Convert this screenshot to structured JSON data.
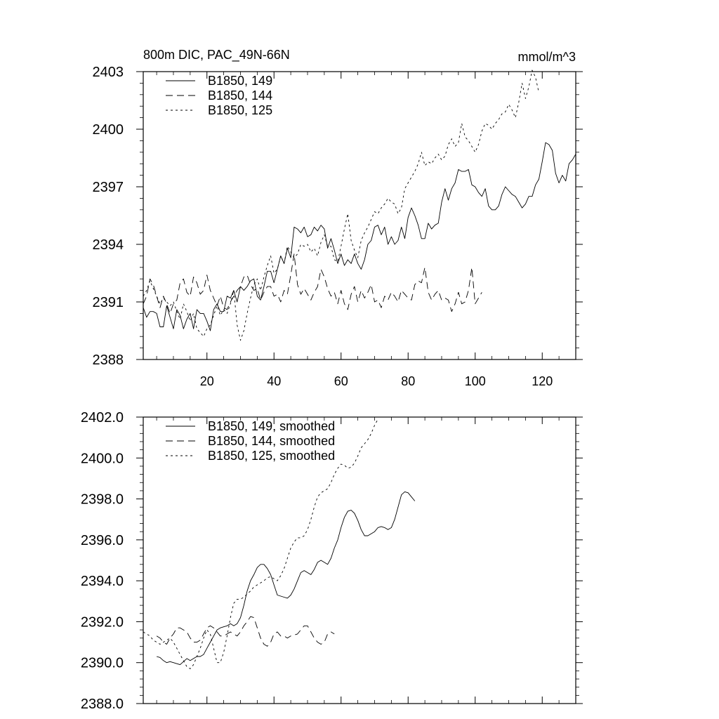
{
  "chart_data": [
    {
      "type": "line",
      "title": "800m DIC, PAC_49N-66N",
      "units": "mmol/m^3",
      "xlim": [
        1,
        130
      ],
      "ylim": [
        2388,
        2403
      ],
      "xticks": [
        20,
        40,
        60,
        80,
        100,
        120
      ],
      "xtick_labels": [
        "20",
        "40",
        "60",
        "80",
        "100",
        "120"
      ],
      "yticks": [
        2388,
        2391,
        2394,
        2397,
        2400,
        2403
      ],
      "ytick_labels": [
        "2388",
        "2391",
        "2394",
        "2397",
        "2400",
        "2403"
      ],
      "legend": "top-left",
      "series": [
        {
          "name": "B1850, 149",
          "style": "solid",
          "x_start": 1,
          "values": [
            2390.7,
            2390.2,
            2390.5,
            2390.5,
            2390.4,
            2389.7,
            2389.7,
            2390.8,
            2390.2,
            2389.6,
            2390.6,
            2390.3,
            2389.6,
            2390.1,
            2390.4,
            2389.6,
            2390.6,
            2390.4,
            2390.4,
            2390.0,
            2389.5,
            2390.6,
            2390.9,
            2390.5,
            2390.5,
            2391.3,
            2391.2,
            2391.6,
            2391.0,
            2391.8,
            2391.6,
            2391.8,
            2392.1,
            2392.2,
            2391.3,
            2391.1,
            2391.8,
            2392.6,
            2392.6,
            2392.0,
            2392.7,
            2393.4,
            2393.0,
            2393.8,
            2393.3,
            2394.9,
            2394.8,
            2394.6,
            2394.9,
            2394.4,
            2394.5,
            2394.9,
            2394.7,
            2395.0,
            2394.8,
            2393.8,
            2394.3,
            2393.7,
            2393.0,
            2393.5,
            2392.9,
            2393.2,
            2393.0,
            2393.5,
            2393.0,
            2392.7,
            2393.2,
            2394.0,
            2394.2,
            2394.9,
            2395.0,
            2394.5,
            2394.9,
            2394.0,
            2394.4,
            2394.0,
            2394.2,
            2394.9,
            2394.3,
            2395.4,
            2395.9,
            2395.5,
            2395.0,
            2394.3,
            2394.3,
            2395.1,
            2394.8,
            2395.0,
            2395.1,
            2396.2,
            2396.9,
            2396.3,
            2396.9,
            2397.2,
            2397.9,
            2397.8,
            2397.8,
            2397.9,
            2397.1,
            2397.0,
            2396.7,
            2396.5,
            2396.9,
            2396.0,
            2395.8,
            2395.8,
            2396.0,
            2396.6,
            2397.0,
            2396.8,
            2396.6,
            2396.5,
            2396.2,
            2395.9,
            2396.1,
            2396.5,
            2396.5,
            2397.1,
            2397.4,
            2398.3,
            2399.3,
            2399.2,
            2398.9,
            2397.7,
            2397.2,
            2397.6,
            2397.3,
            2398.2,
            2398.4,
            2398.7
          ]
        },
        {
          "name": "B1850, 144",
          "style": "dashed",
          "x_start": 1,
          "values": [
            2390.9,
            2391.3,
            2392.2,
            2391.9,
            2391.3,
            2390.7,
            2391.3,
            2390.9,
            2390.4,
            2390.9,
            2391.1,
            2392.0,
            2392.2,
            2391.5,
            2391.3,
            2392.3,
            2392.0,
            2391.4,
            2391.6,
            2392.4,
            2391.6,
            2391.2,
            2390.8,
            2391.3,
            2390.7,
            2390.6,
            2391.0,
            2391.3,
            2391.6,
            2391.8,
            2392.3,
            2392.4,
            2391.9,
            2391.6,
            2391.7,
            2391.1,
            2391.5,
            2391.8,
            2391.8,
            2391.3,
            2391.4,
            2391.0,
            2391.6,
            2391.4,
            2392.4,
            2393.5,
            2391.9,
            2391.4,
            2391.7,
            2391.4,
            2391.1,
            2391.5,
            2391.8,
            2392.7,
            2392.3,
            2391.7,
            2391.3,
            2391.5,
            2390.9,
            2391.6,
            2390.9,
            2390.6,
            2391.4,
            2391.8,
            2391.0,
            2391.6,
            2391.2,
            2391.5,
            2391.9,
            2391.0,
            2391.1,
            2390.7,
            2391.3,
            2391.1,
            2391.5,
            2391.3,
            2391.0,
            2391.6,
            2391.4,
            2391.2,
            2391.1,
            2391.9,
            2392.1,
            2392.0,
            2392.8,
            2391.5,
            2391.1,
            2391.4,
            2391.6,
            2391.1,
            2391.2,
            2391.1,
            2390.5,
            2390.9,
            2391.5,
            2390.9,
            2391.0,
            2391.6,
            2392.8,
            2390.9,
            2391.2,
            2391.5
          ]
        },
        {
          "name": "B1850, 125",
          "style": "dotted",
          "x_start": 1,
          "values": [
            2391.3,
            2391.6,
            2392.1,
            2391.7,
            2391.3,
            2390.9,
            2391.2,
            2391.0,
            2390.8,
            2391.0,
            2390.5,
            2390.1,
            2390.9,
            2390.5,
            2390.0,
            2390.4,
            2389.6,
            2389.4,
            2389.2,
            2389.6,
            2389.8,
            2390.3,
            2390.8,
            2390.3,
            2390.6,
            2390.4,
            2390.9,
            2391.6,
            2389.8,
            2389.0,
            2389.5,
            2390.4,
            2391.2,
            2391.9,
            2392.2,
            2391.6,
            2392.3,
            2392.9,
            2393.4,
            2392.5,
            2392.7,
            2393.4,
            2393.0,
            2393.9,
            2393.6,
            2393.3,
            2393.5,
            2394.0,
            2393.9,
            2394.0,
            2393.6,
            2393.8,
            2393.4,
            2394.1,
            2394.5,
            2393.9,
            2393.9,
            2393.2,
            2393.1,
            2393.9,
            2394.8,
            2395.6,
            2394.2,
            2393.7,
            2393.3,
            2394.2,
            2394.6,
            2394.9,
            2395.3,
            2395.7,
            2395.6,
            2395.9,
            2396.1,
            2396.4,
            2396.2,
            2396.1,
            2395.6,
            2395.9,
            2396.9,
            2397.2,
            2397.5,
            2397.8,
            2398.2,
            2398.8,
            2398.1,
            2398.3,
            2398.2,
            2398.5,
            2398.7,
            2398.4,
            2398.6,
            2399.2,
            2399.5,
            2399.1,
            2399.3,
            2400.3,
            2399.6,
            2399.4,
            2399.1,
            2398.8,
            2399.2,
            2399.9,
            2400.3,
            2400.2,
            2400.0,
            2400.3,
            2400.5,
            2400.8,
            2400.9,
            2401.3,
            2401.0,
            2400.6,
            2401.4,
            2402.4,
            2401.6,
            2402.2,
            2403.3,
            2402.7,
            2401.9
          ]
        }
      ]
    },
    {
      "type": "line",
      "title": "",
      "xlim": [
        1,
        130
      ],
      "ylim": [
        2388.0,
        2402.0
      ],
      "xticks": [
        20,
        40,
        60,
        80,
        100,
        120
      ],
      "yticks": [
        2388.0,
        2390.0,
        2392.0,
        2394.0,
        2396.0,
        2398.0,
        2400.0,
        2402.0
      ],
      "ytick_labels": [
        "2388.0",
        "2390.0",
        "2392.0",
        "2394.0",
        "2396.0",
        "2398.0",
        "2400.0",
        "2402.0"
      ],
      "legend": "top-left",
      "series": [
        {
          "name": "B1850, 149, smoothed",
          "style": "solid",
          "x_start": 5,
          "values": [
            2390.3,
            2390.25,
            2390.1,
            2390.0,
            2390.05,
            2390.0,
            2389.95,
            2389.9,
            2390.05,
            2390.2,
            2390.1,
            2390.2,
            2390.3,
            2390.3,
            2390.4,
            2390.7,
            2391.0,
            2391.3,
            2391.6,
            2391.7,
            2391.75,
            2391.8,
            2391.9,
            2391.8,
            2391.9,
            2392.2,
            2392.8,
            2393.5,
            2394.0,
            2394.3,
            2394.65,
            2394.8,
            2394.8,
            2394.6,
            2394.3,
            2393.8,
            2393.3,
            2393.25,
            2393.2,
            2393.15,
            2393.3,
            2393.6,
            2394.0,
            2394.4,
            2394.5,
            2394.4,
            2394.3,
            2394.55,
            2394.9,
            2395.0,
            2394.9,
            2394.8,
            2395.1,
            2395.6,
            2396.0,
            2396.6,
            2397.1,
            2397.4,
            2397.45,
            2397.3,
            2396.95,
            2396.5,
            2396.2,
            2396.2,
            2396.3,
            2396.4,
            2396.6,
            2396.65,
            2396.6,
            2396.5,
            2396.6,
            2397.0,
            2397.6,
            2398.2,
            2398.35,
            2398.3,
            2398.1,
            2397.9
          ]
        },
        {
          "name": "B1850, 144, smoothed",
          "style": "dashed",
          "x_start": 5,
          "values": [
            2391.3,
            2391.2,
            2391.0,
            2390.9,
            2391.2,
            2391.4,
            2391.7,
            2391.7,
            2391.6,
            2391.5,
            2391.2,
            2391.0,
            2391.0,
            2391.1,
            2391.4,
            2391.7,
            2391.8,
            2391.7,
            2391.5,
            2391.3,
            2391.3,
            2391.4,
            2391.5,
            2391.4,
            2391.3,
            2391.5,
            2391.8,
            2392.0,
            2392.25,
            2392.2,
            2391.7,
            2391.2,
            2390.9,
            2390.8,
            2391.0,
            2391.4,
            2391.5,
            2391.3,
            2391.3,
            2391.2,
            2391.3,
            2391.35,
            2391.4,
            2391.6,
            2391.8,
            2391.8,
            2391.5,
            2391.2,
            2391.0,
            2390.9,
            2391.0,
            2391.4,
            2391.5,
            2391.4
          ]
        },
        {
          "name": "B1850, 125, smoothed",
          "style": "dotted",
          "x_start": 1,
          "values": [
            2391.5,
            2391.4,
            2391.3,
            2391.1,
            2391.0,
            2390.9,
            2391.0,
            2391.1,
            2391.2,
            2391.0,
            2390.7,
            2390.4,
            2390.1,
            2389.8,
            2389.7,
            2389.9,
            2390.3,
            2390.7,
            2391.2,
            2391.6,
            2391.4,
            2390.7,
            2390.0,
            2390.0,
            2390.5,
            2391.3,
            2392.2,
            2392.9,
            2393.1,
            2393.1,
            2393.2,
            2393.35,
            2393.5,
            2393.7,
            2393.8,
            2393.9,
            2394.0,
            2394.15,
            2394.2,
            2394.1,
            2394.0,
            2394.25,
            2394.6,
            2395.1,
            2395.6,
            2395.9,
            2396.1,
            2396.1,
            2396.2,
            2396.5,
            2397.0,
            2397.6,
            2398.1,
            2398.3,
            2398.4,
            2398.5,
            2398.8,
            2399.2,
            2399.5,
            2399.7,
            2399.65,
            2399.5,
            2399.55,
            2399.75,
            2400.1,
            2400.5,
            2400.7,
            2400.9,
            2401.2,
            2401.6,
            2401.9
          ]
        }
      ]
    }
  ]
}
